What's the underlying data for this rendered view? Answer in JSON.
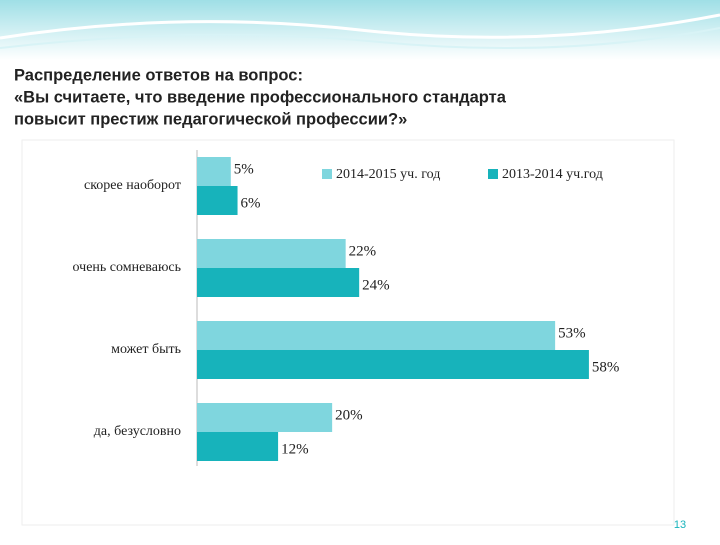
{
  "chart_data": {
    "type": "bar",
    "orientation": "horizontal",
    "title": [
      "Распределение ответов на вопрос:",
      "«Вы считаете, что введение профессионального стандарта",
      "повысит престиж педагогической профессии?»"
    ],
    "categories": [
      "скорее наоборот",
      "очень сомневаюсь",
      "может быть",
      "да, безусловно"
    ],
    "series": [
      {
        "name": "2014-2015 уч. год",
        "color": "#7fd6de",
        "values": [
          5,
          22,
          53,
          20
        ],
        "value_labels": [
          "5%",
          "22%",
          "53%",
          "20%"
        ]
      },
      {
        "name": "2013-2014 уч.год",
        "color": "#17b3bb",
        "values": [
          6,
          24,
          58,
          12
        ],
        "value_labels": [
          "6%",
          "24%",
          "58%",
          "12%"
        ]
      }
    ],
    "xlim": [
      0,
      70
    ],
    "legend": "top-right"
  },
  "slide": {
    "page_number": "13"
  }
}
